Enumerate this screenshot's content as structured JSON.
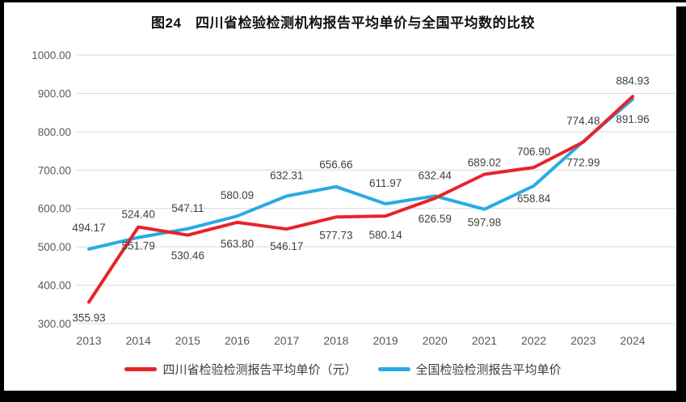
{
  "title": "图24　四川省检验检测机构报告平均单价与全国平均数的比较",
  "chart_data": {
    "type": "line",
    "categories": [
      "2013",
      "2014",
      "2015",
      "2016",
      "2017",
      "2018",
      "2019",
      "2020",
      "2021",
      "2022",
      "2023",
      "2024"
    ],
    "series": [
      {
        "name": "四川省检验检测报告平均单价（元）",
        "color": "#e8232a",
        "values": [
          355.93,
          551.79,
          530.46,
          563.8,
          546.17,
          577.73,
          580.14,
          626.59,
          689.02,
          706.9,
          772.99,
          891.96
        ]
      },
      {
        "name": "全国检验检测报告平均单价",
        "color": "#29abe2",
        "values": [
          494.17,
          524.4,
          547.11,
          580.09,
          632.31,
          656.66,
          611.97,
          632.44,
          597.98,
          658.84,
          774.48,
          884.93
        ]
      }
    ],
    "ylim": [
      300,
      1000
    ],
    "ytick_step": 100,
    "ytick_labels": [
      "300.00",
      "400.00",
      "500.00",
      "600.00",
      "700.00",
      "800.00",
      "900.00",
      "1000.00"
    ],
    "grid": "horizontal",
    "legend_position": "bottom",
    "layout": {
      "draw_order": [
        "national_first",
        "sichuan_on_top"
      ],
      "label_dy_sichuan": [
        24,
        28,
        30,
        31,
        26,
        27,
        28,
        30,
        -10,
        -15,
        30,
        33
      ],
      "label_dy_national": [
        -22,
        -24,
        -21,
        -21,
        -21,
        -23,
        -21,
        -21,
        21,
        20,
        -21,
        -18
      ]
    },
    "style": {
      "grid_color": "#d9d9d9",
      "tick_label_color": "#595959",
      "data_label_color": "#404040",
      "line_width": 4
    }
  }
}
